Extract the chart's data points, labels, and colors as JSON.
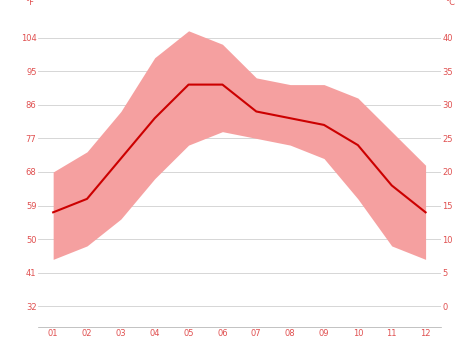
{
  "months": [
    1,
    2,
    3,
    4,
    5,
    6,
    7,
    8,
    9,
    10,
    11,
    12
  ],
  "avg_temp_c": [
    14,
    16,
    22,
    28,
    33,
    33,
    29,
    28,
    27,
    24,
    18,
    14
  ],
  "max_temp_c": [
    20,
    23,
    29,
    37,
    41,
    39,
    34,
    33,
    33,
    31,
    26,
    21
  ],
  "min_temp_c": [
    7,
    9,
    13,
    19,
    24,
    26,
    25,
    24,
    22,
    16,
    9,
    7
  ],
  "line_color": "#cc0000",
  "fill_color": "#f5a0a0",
  "background_color": "#ffffff",
  "grid_color": "#d0d0d0",
  "yticks_c": [
    0,
    5,
    10,
    15,
    20,
    25,
    30,
    35,
    40
  ],
  "yticks_f": [
    32,
    41,
    50,
    59,
    68,
    77,
    86,
    95,
    104
  ],
  "ylabel_left": "°F",
  "ylabel_right": "°C",
  "tick_label_color": "#e05050",
  "tick_label_fontsize": 6,
  "line_width": 1.5,
  "ylim_min": -3,
  "ylim_max": 44,
  "xlim_min": 0.55,
  "xlim_max": 12.45
}
